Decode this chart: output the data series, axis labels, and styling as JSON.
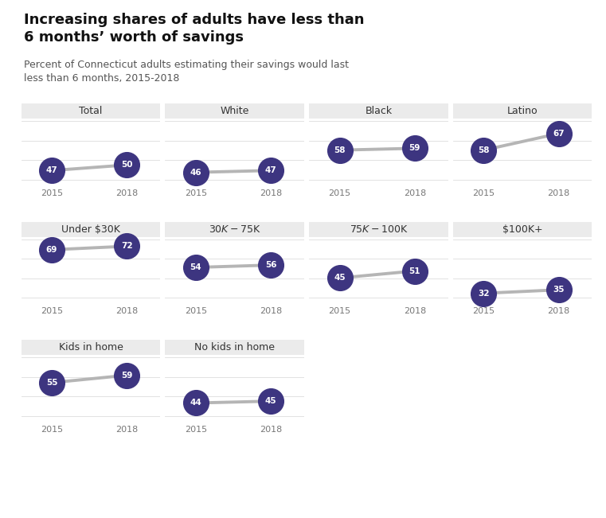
{
  "title": "Increasing shares of adults have less than\n6 months’ worth of savings",
  "subtitle": "Percent of Connecticut adults estimating their savings would last\nless than 6 months, 2015-2018",
  "panels": [
    {
      "label": "Total",
      "v2015": 47,
      "v2018": 50,
      "row": 0,
      "col": 0
    },
    {
      "label": "White",
      "v2015": 46,
      "v2018": 47,
      "row": 0,
      "col": 1
    },
    {
      "label": "Black",
      "v2015": 58,
      "v2018": 59,
      "row": 0,
      "col": 2
    },
    {
      "label": "Latino",
      "v2015": 58,
      "v2018": 67,
      "row": 0,
      "col": 3
    },
    {
      "label": "Under $30K",
      "v2015": 69,
      "v2018": 72,
      "row": 1,
      "col": 0
    },
    {
      "label": "$30K-$75K",
      "v2015": 54,
      "v2018": 56,
      "row": 1,
      "col": 1
    },
    {
      "label": "$75K-$100K",
      "v2015": 45,
      "v2018": 51,
      "row": 1,
      "col": 2
    },
    {
      "label": "$100K+",
      "v2015": 32,
      "v2018": 35,
      "row": 1,
      "col": 3
    },
    {
      "label": "Kids in home",
      "v2015": 55,
      "v2018": 59,
      "row": 2,
      "col": 0
    },
    {
      "label": "No kids in home",
      "v2015": 44,
      "v2018": 45,
      "row": 2,
      "col": 1
    }
  ],
  "row_ranges": [
    [
      40,
      75
    ],
    [
      25,
      80
    ],
    [
      35,
      70
    ]
  ],
  "dot_color": "#3d3580",
  "line_color": "#b5b5b5",
  "panel_bg": "#ebebeb",
  "text_color_white": "#ffffff",
  "axis_label_color": "#777777",
  "title_fontsize": 13,
  "subtitle_fontsize": 9,
  "value_fontsize": 7.5,
  "tick_fontsize": 8,
  "panel_label_fontsize": 9,
  "bg_color": "#ffffff"
}
